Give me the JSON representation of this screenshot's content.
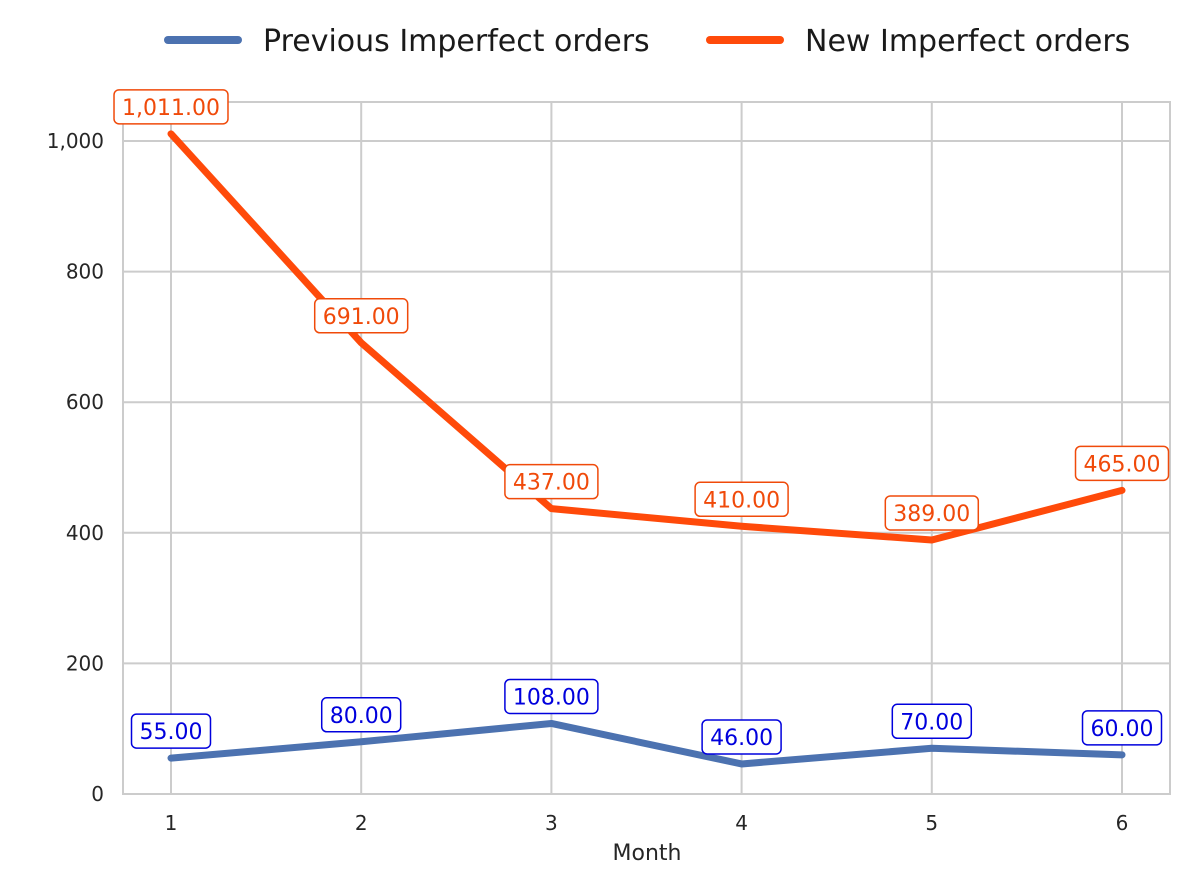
{
  "chart_data": {
    "type": "line",
    "title": "",
    "xlabel": "Month",
    "ylabel": "",
    "x": [
      1,
      2,
      3,
      4,
      5,
      6
    ],
    "x_tick_labels": [
      "1",
      "2",
      "3",
      "4",
      "5",
      "6"
    ],
    "ylim": [
      0,
      1060
    ],
    "y_ticks": [
      0,
      200,
      400,
      600,
      800,
      1000
    ],
    "y_tick_labels": [
      "0",
      "200",
      "400",
      "600",
      "800",
      "1,000"
    ],
    "grid": true,
    "legend_position": "top-center",
    "series": [
      {
        "name": "Previous Imperfect orders",
        "color": "#4c72b0",
        "label_color": "#0000dd",
        "values": [
          55,
          80,
          108,
          46,
          70,
          60
        ],
        "labels": [
          "55.00",
          "80.00",
          "108.00",
          "46.00",
          "70.00",
          "60.00"
        ]
      },
      {
        "name": "New Imperfect orders",
        "color": "#ff4a0a",
        "label_color": "#f04a0a",
        "values": [
          1011,
          691,
          437,
          410,
          389,
          465
        ],
        "labels": [
          "1,011.00",
          "691.00",
          "437.00",
          "410.00",
          "389.00",
          "465.00"
        ]
      }
    ]
  }
}
